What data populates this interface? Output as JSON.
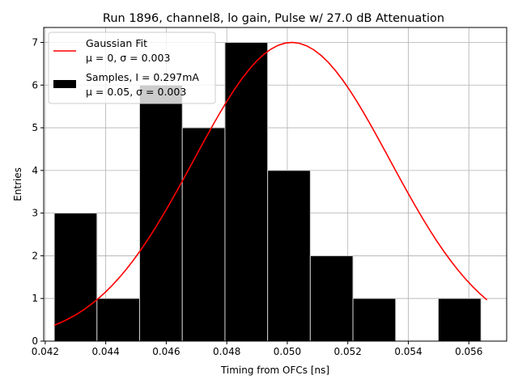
{
  "chart_data": {
    "type": "bar",
    "title": "Run 1896, channel8, lo gain, Pulse w/ 27.0 dB Attenuation",
    "xlabel": "Timing from OFCs [ns]",
    "ylabel": "Entries",
    "xlim": [
      0.04195,
      0.05725
    ],
    "ylim": [
      0,
      7.35
    ],
    "grid": true,
    "legend_position": "upper-left",
    "x_ticks": [
      "0.042",
      "0.044",
      "0.046",
      "0.048",
      "0.050",
      "0.052",
      "0.054",
      "0.056"
    ],
    "x_tick_values": [
      0.042,
      0.044,
      0.046,
      0.048,
      0.05,
      0.052,
      0.054,
      0.056
    ],
    "y_ticks": [
      "0",
      "1",
      "2",
      "3",
      "4",
      "5",
      "6",
      "7"
    ],
    "y_tick_values": [
      0,
      1,
      2,
      3,
      4,
      5,
      6,
      7
    ],
    "histogram": {
      "name": "Samples, I = 0.297mA",
      "stats": "μ = 0.05, σ = 0.003",
      "color": "#000000",
      "edge_color": "#cccccc",
      "bin_edges": [
        0.0423,
        0.04371,
        0.04512,
        0.04653,
        0.04794,
        0.04935,
        0.05076,
        0.05217,
        0.05358,
        0.05499,
        0.0564
      ],
      "counts": [
        3,
        1,
        6,
        5,
        7,
        4,
        2,
        1,
        0,
        1
      ]
    },
    "fit": {
      "name": "Gaussian Fit",
      "stats": "μ = 0, σ = 0.003",
      "color": "#ff0000",
      "mean": 0.05015,
      "sigma": 0.00324,
      "amplitude": 7.0,
      "x_range": [
        0.0423,
        0.0566
      ]
    }
  }
}
